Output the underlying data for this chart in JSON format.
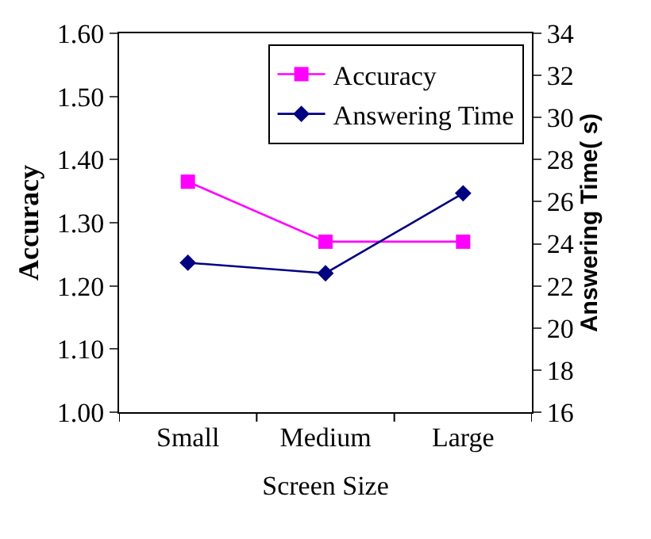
{
  "chart_data": {
    "type": "line",
    "xlabel": "Screen Size",
    "ylabel": "Accuracy",
    "y2label": "Answering Time( s)",
    "categories": [
      "Small",
      "Medium",
      "Large"
    ],
    "series": [
      {
        "name": "Accuracy",
        "color": "#ff00ff",
        "values": [
          1.365,
          1.27,
          1.27
        ],
        "marker": "square"
      },
      {
        "name": "Answering Time",
        "color": "#000080",
        "values": [
          23.1,
          22.6,
          26.4
        ],
        "marker": "diamond",
        "axis": "y2"
      }
    ],
    "ylim": [
      1.0,
      1.6
    ],
    "yticks": [
      {
        "value": 1.0,
        "label": "1.00"
      },
      {
        "value": 1.1,
        "label": "1.10"
      },
      {
        "value": 1.2,
        "label": "1.20"
      },
      {
        "value": 1.3,
        "label": "1.30"
      },
      {
        "value": 1.4,
        "label": "1.40"
      },
      {
        "value": 1.5,
        "label": "1.50"
      },
      {
        "value": 1.6,
        "label": "1.60"
      }
    ],
    "y2lim": [
      16,
      34
    ],
    "y2ticks": [
      16,
      18,
      20,
      22,
      24,
      26,
      28,
      30,
      32,
      34
    ],
    "legend": "top right",
    "line_style": "solid"
  }
}
